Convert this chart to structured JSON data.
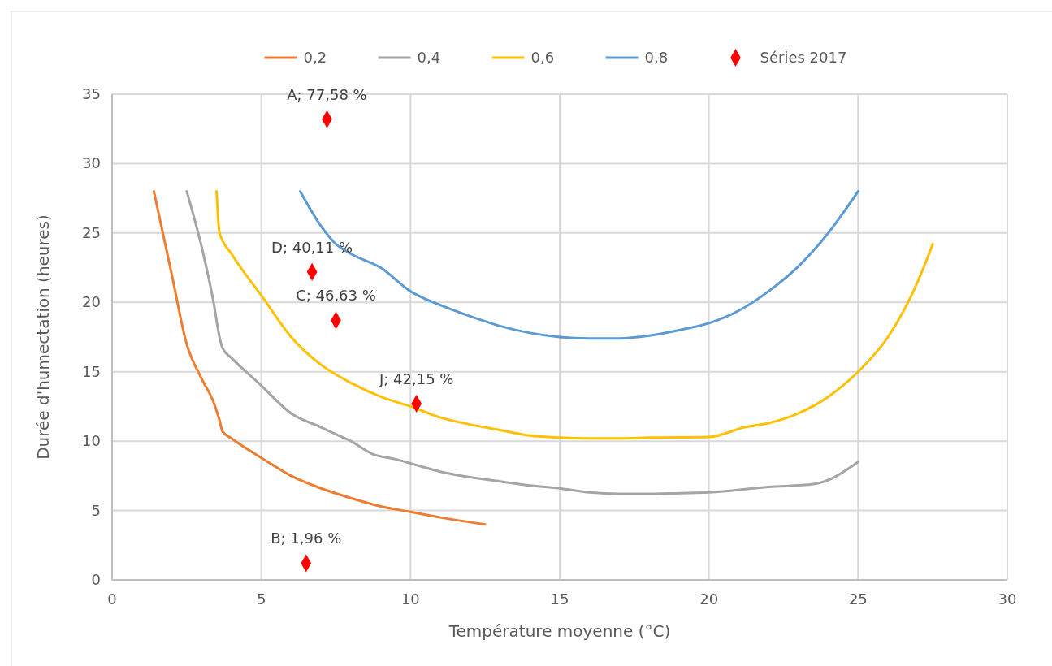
{
  "chart_data": {
    "type": "line",
    "xlabel": "Température moyenne (°C)",
    "ylabel": "Durée d'humectation (heures)",
    "xlim": [
      0,
      30
    ],
    "xticks": [
      0,
      5,
      10,
      15,
      20,
      25,
      30
    ],
    "ylim": [
      0,
      35
    ],
    "yticks": [
      0,
      5,
      10,
      15,
      20,
      25,
      30,
      35
    ],
    "grid": true,
    "legend": "top",
    "marker": "none",
    "line_style": "solid",
    "series": [
      {
        "name": "0,2",
        "color": "#ed7d31",
        "x": [
          1.4,
          2,
          2.5,
          3,
          3.4,
          3.6,
          3.7,
          4,
          5,
          6,
          7,
          8,
          9,
          10,
          11,
          12.5
        ],
        "values": [
          28,
          22,
          17,
          14.5,
          12.8,
          11.5,
          10.7,
          10.2,
          8.8,
          7.5,
          6.6,
          5.9,
          5.3,
          4.9,
          4.5,
          4.0
        ]
      },
      {
        "name": "0,4",
        "color": "#a5a5a5",
        "x": [
          2.5,
          3,
          3.4,
          3.6,
          3.7,
          4,
          5,
          6,
          7,
          7.5,
          8,
          8.7,
          9.5,
          10,
          11,
          12,
          13,
          14,
          15,
          16,
          17,
          18,
          19,
          20,
          22,
          23.5,
          24,
          25
        ],
        "values": [
          28,
          24,
          20,
          17.5,
          16.7,
          16,
          14,
          12,
          11,
          10.5,
          10,
          9.1,
          8.7,
          8.4,
          7.8,
          7.4,
          7.1,
          6.8,
          6.6,
          6.3,
          6.2,
          6.2,
          6.25,
          6.3,
          6.7,
          6.9,
          7.2,
          8.5
        ]
      },
      {
        "name": "0,6",
        "color": "#ffc000",
        "x": [
          3.5,
          3.6,
          4,
          5,
          6,
          7,
          8,
          9,
          10,
          11,
          12,
          13,
          14,
          15,
          16,
          17,
          18,
          20,
          21.2,
          22,
          23,
          24,
          25,
          26,
          27,
          27.5
        ],
        "values": [
          28,
          25,
          23.5,
          20.5,
          17.5,
          15.5,
          14.2,
          13.2,
          12.5,
          11.7,
          11.2,
          10.8,
          10.4,
          10.25,
          10.2,
          10.2,
          10.25,
          10.3,
          11,
          11.3,
          12,
          13.2,
          15,
          17.5,
          21.5,
          24.2
        ]
      },
      {
        "name": "0,8",
        "color": "#5b9bd5",
        "x": [
          6.3,
          7,
          7.5,
          8,
          9,
          10,
          11,
          12,
          13,
          14,
          15,
          16,
          17,
          18,
          19,
          20,
          21,
          22,
          23,
          24,
          25
        ],
        "values": [
          28,
          25.5,
          24.2,
          23.5,
          22.5,
          20.8,
          19.8,
          19,
          18.3,
          17.8,
          17.5,
          17.4,
          17.4,
          17.6,
          18,
          18.5,
          19.4,
          20.8,
          22.6,
          25,
          28
        ]
      },
      {
        "name": "Séries 2017",
        "type": "scatter",
        "marker": "diamond",
        "color": "#ff0000",
        "x": [
          7.2,
          6.7,
          7.5,
          10.2,
          6.5
        ],
        "values": [
          33.2,
          22.2,
          18.7,
          12.7,
          1.2
        ]
      }
    ],
    "annotations": [
      {
        "text": "A; 77,58 %",
        "x": 7.2,
        "y": 33.2
      },
      {
        "text": "D; 40,11 %",
        "x": 6.7,
        "y": 22.2
      },
      {
        "text": "C; 46,63 %",
        "x": 7.5,
        "y": 18.7
      },
      {
        "text": "J; 42,15 %",
        "x": 10.2,
        "y": 12.7
      },
      {
        "text": "B; 1,96 %",
        "x": 6.5,
        "y": 1.2
      }
    ]
  }
}
